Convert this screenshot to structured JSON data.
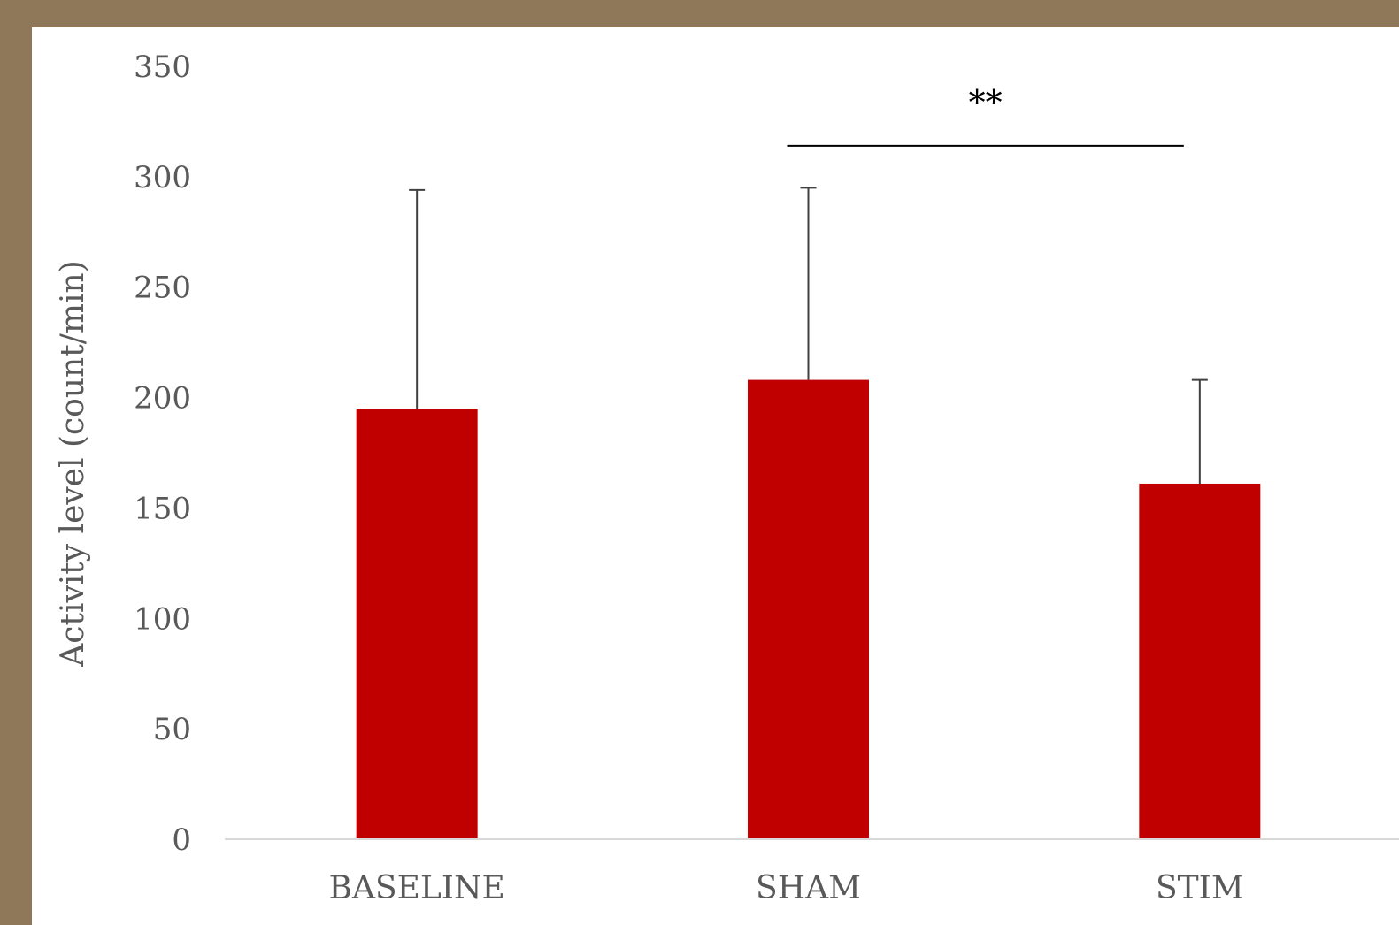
{
  "chart_data": {
    "type": "bar",
    "title": "",
    "xlabel": "",
    "ylabel": "Activity level (count/min)",
    "categories": [
      "BASELINE",
      "SHAM",
      "STIM"
    ],
    "values": [
      195,
      208,
      161
    ],
    "error_upper": [
      294,
      295,
      208
    ],
    "ylim": [
      0,
      350
    ],
    "yticks": [
      0,
      50,
      100,
      150,
      200,
      250,
      300,
      350
    ],
    "grid": false,
    "legend": "none",
    "bar_color": "#c00000",
    "significance": {
      "label": "**",
      "from": "SHAM",
      "to": "STIM",
      "y": 314
    }
  }
}
